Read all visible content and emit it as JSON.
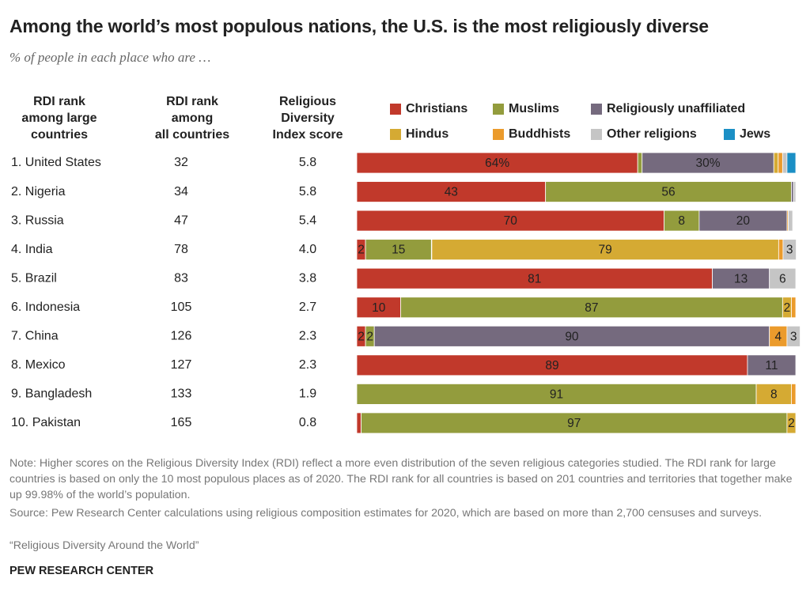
{
  "chart_data": {
    "type": "stacked-bar",
    "title": "Among the world’s most populous nations, the U.S. is the most religiously diverse",
    "subtitle": "% of people in each place who are …",
    "table": {
      "columns": [
        [
          "RDI rank",
          "among large",
          "countries"
        ],
        [
          "RDI rank",
          "among",
          "all countries"
        ],
        [
          "Religious",
          "Diversity",
          "Index score"
        ]
      ],
      "rows": [
        [
          "1. United States",
          "32",
          "5.8"
        ],
        [
          "2. Nigeria",
          "34",
          "5.8"
        ],
        [
          "3. Russia",
          "47",
          "5.4"
        ],
        [
          "4. India",
          "78",
          "4.0"
        ],
        [
          "5. Brazil",
          "83",
          "3.8"
        ],
        [
          "6. Indonesia",
          "105",
          "2.7"
        ],
        [
          "7. China",
          "126",
          "2.3"
        ],
        [
          "8. Mexico",
          "127",
          "2.3"
        ],
        [
          "9. Bangladesh",
          "133",
          "1.9"
        ],
        [
          "10. Pakistan",
          "165",
          "0.8"
        ]
      ]
    },
    "xlim": [
      0,
      100
    ],
    "series": [
      {
        "name": "Christians",
        "color": "#c1392b",
        "values": [
          64,
          43,
          70,
          2,
          81,
          10,
          2,
          89,
          0,
          1
        ],
        "value_labels": [
          "64%",
          "43",
          "70",
          "2",
          "81",
          "10",
          "2",
          "89",
          null,
          null
        ]
      },
      {
        "name": "Muslims",
        "color": "#939c3d",
        "values": [
          1,
          56,
          8,
          15,
          0,
          87,
          2,
          0,
          91,
          97
        ],
        "value_labels": [
          null,
          "56",
          "8",
          "15",
          null,
          "87",
          "2",
          null,
          "91",
          "97"
        ]
      },
      {
        "name": "Religiously unaffiliated",
        "color": "#756a7e",
        "values": [
          30,
          0.5,
          20,
          0.1,
          13,
          0,
          90,
          11,
          0,
          0
        ],
        "value_labels": [
          "30%",
          null,
          "20",
          null,
          "13",
          null,
          "90",
          "11",
          null,
          null
        ]
      },
      {
        "name": "Hindus",
        "color": "#d5aa33",
        "values": [
          1,
          0,
          0,
          79,
          0,
          2,
          0,
          0,
          8,
          2
        ],
        "value_labels": [
          null,
          null,
          null,
          "79",
          null,
          "2",
          null,
          null,
          "8",
          "2"
        ]
      },
      {
        "name": "Buddhists",
        "color": "#eb9b2c",
        "values": [
          1,
          0,
          0.3,
          1,
          0,
          1,
          4,
          0,
          1,
          0
        ],
        "value_labels": [
          null,
          null,
          null,
          null,
          null,
          null,
          "4",
          null,
          null,
          null
        ]
      },
      {
        "name": "Other religions",
        "color": "#c5c5c5",
        "values": [
          1,
          0.5,
          1,
          3,
          6,
          0,
          3,
          0,
          0,
          0
        ],
        "value_labels": [
          null,
          null,
          null,
          "3",
          "6",
          null,
          "3",
          null,
          null,
          null
        ]
      },
      {
        "name": "Jews",
        "color": "#1b8fc5",
        "values": [
          2,
          0,
          0,
          0,
          0,
          0,
          0,
          0,
          0,
          0
        ],
        "value_labels": [
          null,
          null,
          null,
          null,
          null,
          null,
          null,
          null,
          null,
          null
        ]
      }
    ],
    "note": "Note: Higher scores on the Religious Diversity Index (RDI) reflect a more even distribution of the seven religious categories studied. The RDI rank for large countries is based on only the 10 most populous places as of 2020. The RDI rank for all countries is based on 201 countries and territories that together make up 99.98% of the world’s population.",
    "source": "Source: Pew Research Center calculations using religious composition estimates for 2020, which are based on more than 2,700 censuses and surveys.",
    "report": "“Religious Diversity Around the World”",
    "credit": "PEW RESEARCH CENTER"
  }
}
